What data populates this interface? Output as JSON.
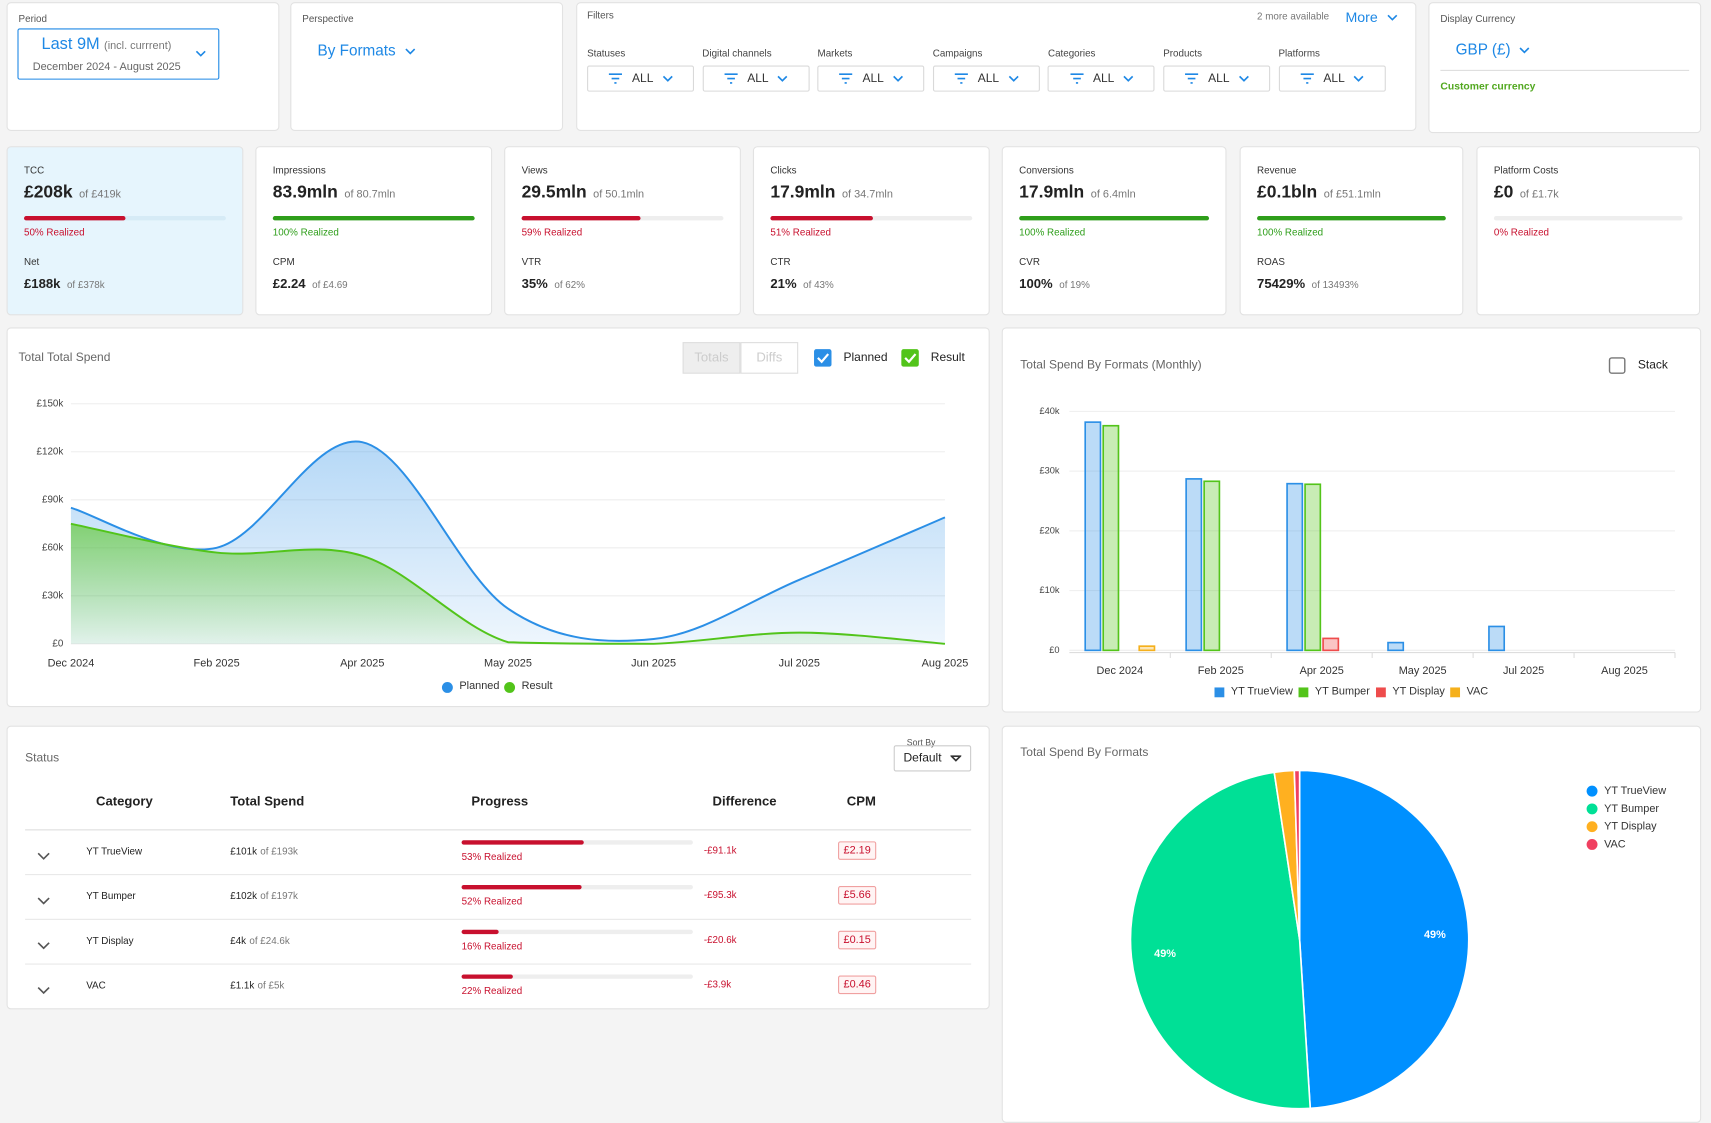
{
  "period": {
    "label": "Period",
    "value": "Last 9M",
    "note": "(incl. currrent)",
    "range": "December 2024 - August 2025"
  },
  "perspective": {
    "label": "Perspective",
    "value": "By Formats"
  },
  "filters": {
    "label": "Filters",
    "more_available": "2 more available",
    "more": "More",
    "items": [
      {
        "label": "Statuses",
        "value": "ALL"
      },
      {
        "label": "Digital channels",
        "value": "ALL"
      },
      {
        "label": "Markets",
        "value": "ALL"
      },
      {
        "label": "Campaigns",
        "value": "ALL"
      },
      {
        "label": "Categories",
        "value": "ALL"
      },
      {
        "label": "Products",
        "value": "ALL"
      },
      {
        "label": "Platforms",
        "value": "ALL"
      }
    ]
  },
  "currency": {
    "label": "Display Currency",
    "value": "GBP (£)",
    "note": "Customer currency"
  },
  "kpis": [
    {
      "title": "TCC",
      "value": "£208k",
      "of": "of £419k",
      "progress": 50,
      "realized": "50% Realized",
      "sub_title": "Net",
      "sub_value": "£188k",
      "sub_of": "of £378k"
    },
    {
      "title": "Impressions",
      "value": "83.9mln",
      "of": "of 80.7mln",
      "progress": 100,
      "realized": "100% Realized",
      "sub_title": "CPM",
      "sub_value": "£2.24",
      "sub_of": "of £4.69"
    },
    {
      "title": "Views",
      "value": "29.5mln",
      "of": "of 50.1mln",
      "progress": 59,
      "realized": "59% Realized",
      "sub_title": "VTR",
      "sub_value": "35%",
      "sub_of": "of 62%"
    },
    {
      "title": "Clicks",
      "value": "17.9mln",
      "of": "of 34.7mln",
      "progress": 51,
      "realized": "51% Realized",
      "sub_title": "CTR",
      "sub_value": "21%",
      "sub_of": "of 43%"
    },
    {
      "title": "Conversions",
      "value": "17.9mln",
      "of": "of 6.4mln",
      "progress": 100,
      "realized": "100% Realized",
      "sub_title": "CVR",
      "sub_value": "100%",
      "sub_of": "of 19%"
    },
    {
      "title": "Revenue",
      "value": "£0.1bln",
      "of": "of £51.1mln",
      "progress": 100,
      "realized": "100% Realized",
      "sub_title": "ROAS",
      "sub_value": "75429%",
      "sub_of": "of 13493%"
    },
    {
      "title": "Platform Costs",
      "value": "£0",
      "of": "of £1.7k",
      "progress": 0,
      "realized": "0% Realized"
    }
  ],
  "status": {
    "title": "Status",
    "sort_label": "Sort By",
    "sort_value": "Default",
    "columns": [
      "Category",
      "Total Spend",
      "Progress",
      "Difference",
      "CPM"
    ],
    "rows": [
      {
        "category": "YT TrueView",
        "total": "£101k",
        "of": "of £193k",
        "progress": 53,
        "realized": "53% Realized",
        "difference": "-£91.1k",
        "cpm": "£2.19"
      },
      {
        "category": "YT Bumper",
        "total": "£102k",
        "of": "of £197k",
        "progress": 52,
        "realized": "52% Realized",
        "difference": "-£95.3k",
        "cpm": "£5.66"
      },
      {
        "category": "YT Display",
        "total": "£4k",
        "of": "of £24.6k",
        "progress": 16,
        "realized": "16% Realized",
        "difference": "-£20.6k",
        "cpm": "£0.15"
      },
      {
        "category": "VAC",
        "total": "£1.1k",
        "of": "of £5k",
        "progress": 22,
        "realized": "22% Realized",
        "difference": "-£3.9k",
        "cpm": "£0.46"
      }
    ]
  },
  "chart_data": [
    {
      "type": "area",
      "title": "Total Total Spend",
      "toggles": [
        "Totals",
        "Diffs"
      ],
      "categories": [
        "Dec 2024",
        "Feb 2025",
        "Apr 2025",
        "May 2025",
        "Jun 2025",
        "Jul 2025",
        "Aug 2025"
      ],
      "series": [
        {
          "name": "Planned",
          "color": "#2b8fe6",
          "values": [
            85000,
            60000,
            126000,
            22000,
            3000,
            40000,
            79000
          ]
        },
        {
          "name": "Result",
          "color": "#52c41a",
          "values": [
            75000,
            57000,
            55000,
            1000,
            0,
            7000,
            0
          ]
        }
      ],
      "ylim": [
        0,
        150000
      ],
      "yticks": [
        {
          "value": 0,
          "label": "£0"
        },
        {
          "value": 30000,
          "label": "£30k"
        },
        {
          "value": 60000,
          "label": "£60k"
        },
        {
          "value": 90000,
          "label": "£90k"
        },
        {
          "value": 120000,
          "label": "£120k"
        },
        {
          "value": 150000,
          "label": "£150k"
        }
      ],
      "grid": true,
      "legend": "bottom"
    },
    {
      "type": "bar",
      "title": "Total Spend By Formats (Monthly)",
      "stack_label": "Stack",
      "stacked": false,
      "categories": [
        "Dec 2024",
        "Feb 2025",
        "Apr 2025",
        "May 2025",
        "Jul 2025",
        "Aug 2025"
      ],
      "series": [
        {
          "name": "YT TrueView",
          "color": "#2b8fe6",
          "values": [
            38200,
            28700,
            27900,
            1300,
            4000,
            0
          ]
        },
        {
          "name": "YT Bumper",
          "color": "#53c41a",
          "values": [
            37600,
            28300,
            27800,
            0,
            0,
            0
          ]
        },
        {
          "name": "YT Display",
          "color": "#ee4c4c",
          "values": [
            0,
            0,
            2000,
            0,
            0,
            0
          ]
        },
        {
          "name": "VAC",
          "color": "#f5b01c",
          "values": [
            700,
            0,
            0,
            0,
            0,
            0
          ]
        }
      ],
      "ylim": [
        0,
        40000
      ],
      "yticks": [
        {
          "value": 0,
          "label": "£0"
        },
        {
          "value": 10000,
          "label": "£10k"
        },
        {
          "value": 20000,
          "label": "£20k"
        },
        {
          "value": 30000,
          "label": "£30k"
        },
        {
          "value": 40000,
          "label": "£40k"
        }
      ],
      "grid": true,
      "legend": "bottom"
    },
    {
      "type": "pie",
      "title": "Total Spend By Formats",
      "categories": [
        "YT TrueView",
        "YT Bumper",
        "YT Display",
        "VAC"
      ],
      "values": [
        49,
        48.6,
        1.9,
        0.5
      ],
      "value_labels": [
        "49%",
        "49%",
        null,
        null
      ],
      "colors": [
        "#0090ff",
        "#00e096",
        "#ffb020",
        "#f04060"
      ],
      "legend": "top-right"
    }
  ]
}
